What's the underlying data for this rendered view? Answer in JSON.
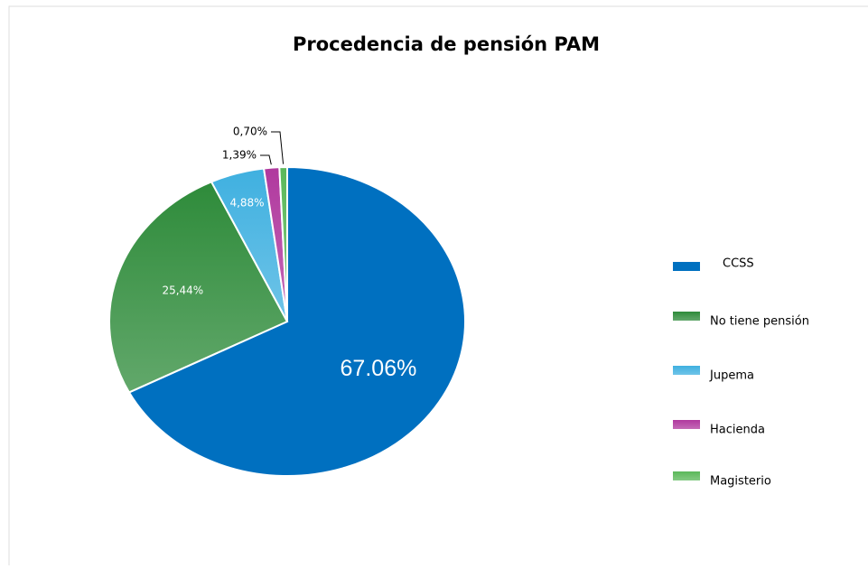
{
  "chart_data": {
    "type": "pie",
    "title": "Procedencia de pensión PAM",
    "categories": [
      "CCSS",
      "No tiene pensión",
      "Jupema",
      "Hacienda",
      "Magisterio"
    ],
    "values": [
      67.06,
      25.44,
      4.88,
      1.39,
      0.7
    ],
    "value_labels": [
      "67.06%",
      "25,44%",
      "4,88%",
      "1,39%",
      "0,70%"
    ],
    "colors": [
      "#0070c0",
      "#2e8b3a",
      "#3fb0e0",
      "#b0389e",
      "#5bb85a"
    ],
    "legend": "right"
  }
}
